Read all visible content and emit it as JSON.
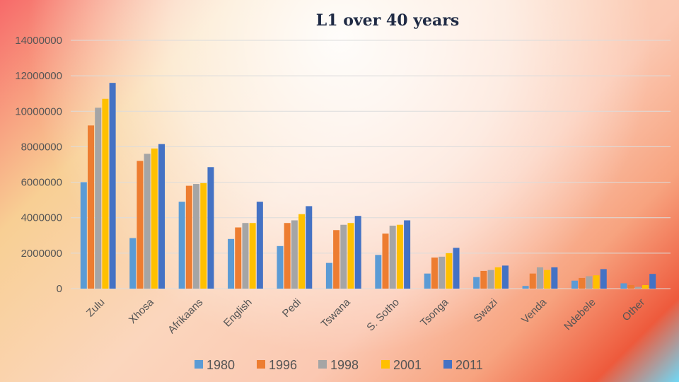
{
  "chart_data": {
    "type": "bar",
    "title": "L1 over 40 years",
    "xlabel": "",
    "ylabel": "",
    "ylim": [
      0,
      14000000
    ],
    "yticks": [
      "0",
      "2000000",
      "4000000",
      "6000000",
      "8000000",
      "10000000",
      "12000000",
      "14000000"
    ],
    "yticks_values": [
      0,
      2000000,
      4000000,
      6000000,
      8000000,
      10000000,
      12000000,
      14000000
    ],
    "categories": [
      "Zulu",
      "Xhosa",
      "Afrikaans",
      "English",
      "Pedi",
      "Tswana",
      "S. Sotho",
      "Tsonga",
      "Swazi",
      "Venda",
      "Ndebele",
      "Other"
    ],
    "series": [
      {
        "name": "1980",
        "color": "#5b9bd5",
        "values": [
          6000000,
          2850000,
          4900000,
          2800000,
          2400000,
          1450000,
          1900000,
          850000,
          650000,
          150000,
          450000,
          300000
        ]
      },
      {
        "name": "1996",
        "color": "#ed7d31",
        "values": [
          9200000,
          7200000,
          5800000,
          3450000,
          3700000,
          3300000,
          3100000,
          1750000,
          1000000,
          850000,
          600000,
          200000
        ]
      },
      {
        "name": "1998",
        "color": "#a5a5a5",
        "values": [
          10200000,
          7600000,
          5900000,
          3700000,
          3850000,
          3600000,
          3550000,
          1800000,
          1050000,
          1200000,
          700000,
          100000
        ]
      },
      {
        "name": "2001",
        "color": "#ffc000",
        "values": [
          10700000,
          7900000,
          5950000,
          3700000,
          4200000,
          3700000,
          3600000,
          2000000,
          1200000,
          1050000,
          750000,
          200000
        ]
      },
      {
        "name": "2011",
        "color": "#4472c4",
        "values": [
          11600000,
          8150000,
          6850000,
          4900000,
          4650000,
          4100000,
          3850000,
          2300000,
          1300000,
          1200000,
          1100000,
          830000
        ]
      }
    ],
    "grid": true,
    "legend_position": "bottom"
  }
}
